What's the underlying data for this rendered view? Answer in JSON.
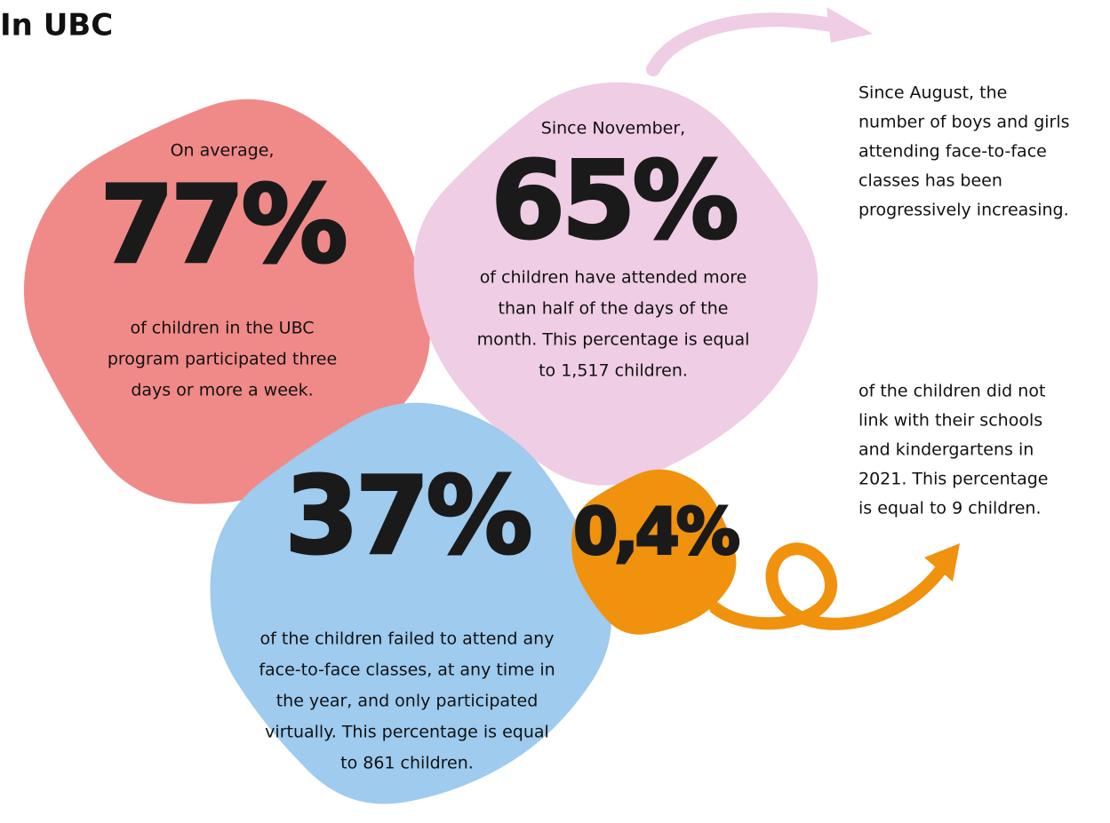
{
  "title": "In UBC",
  "stats": [
    {
      "intro": "On average,",
      "figure": "77%",
      "description": [
        "of children in the UBC",
        "program participated three",
        "days or more a week."
      ]
    },
    {
      "intro": "Since November,",
      "figure": "65%",
      "description": [
        "of children have attended more",
        "than half of the days of the",
        "month. This percentage is equal",
        "to 1,517 children."
      ]
    },
    {
      "figure": "37%",
      "description": [
        "of the children failed to attend any",
        "face-to-face classes, at any time in",
        "the year, and only participated",
        "virtually. This percentage is equal",
        "to 861 children."
      ]
    },
    {
      "figure": "0,4%"
    }
  ],
  "notes": [
    [
      "Since August, the",
      "number of boys and girls",
      "attending face-to-face",
      "classes has been",
      "progressively increasing."
    ],
    [
      "of the children did not",
      "link with their schools",
      "and kindergartens in",
      "2021. This percentage",
      "is equal to 9 children."
    ]
  ]
}
